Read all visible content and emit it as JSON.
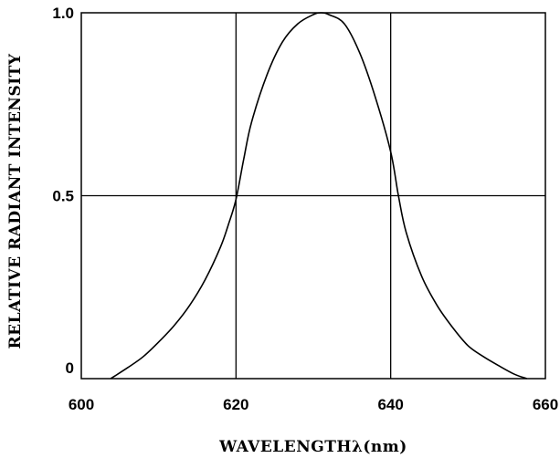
{
  "chart_data": {
    "type": "line",
    "title": "",
    "xlabel": "WAVELENGTHλ(nm)",
    "ylabel": "RELATIVE RADIANT INTENSITY",
    "xlim": [
      600,
      660
    ],
    "ylim": [
      0,
      1.0
    ],
    "x_ticks": [
      {
        "value": 600,
        "label": "600"
      },
      {
        "value": 620,
        "label": "620"
      },
      {
        "value": 640,
        "label": "640"
      },
      {
        "value": 660,
        "label": "660"
      }
    ],
    "y_ticks": [
      {
        "value": 0,
        "label": "0"
      },
      {
        "value": 0.5,
        "label": "0.5"
      },
      {
        "value": 1.0,
        "label": "1.0"
      }
    ],
    "grid_x": [
      620,
      640
    ],
    "grid_y": [
      0.5
    ],
    "series": [
      {
        "color": "#000000",
        "points": [
          [
            603.8,
            0.0
          ],
          [
            606,
            0.03
          ],
          [
            608,
            0.06
          ],
          [
            610,
            0.1
          ],
          [
            612,
            0.145
          ],
          [
            614,
            0.2
          ],
          [
            616,
            0.27
          ],
          [
            618,
            0.36
          ],
          [
            619,
            0.42
          ],
          [
            620,
            0.49
          ],
          [
            621,
            0.6
          ],
          [
            622,
            0.7
          ],
          [
            624,
            0.83
          ],
          [
            626,
            0.92
          ],
          [
            628,
            0.97
          ],
          [
            630,
            0.995
          ],
          [
            631,
            1.0
          ],
          [
            632,
            0.995
          ],
          [
            634,
            0.97
          ],
          [
            636,
            0.89
          ],
          [
            638,
            0.77
          ],
          [
            640,
            0.62
          ],
          [
            641,
            0.5
          ],
          [
            642,
            0.4
          ],
          [
            644,
            0.28
          ],
          [
            646,
            0.2
          ],
          [
            648,
            0.14
          ],
          [
            650,
            0.09
          ],
          [
            652,
            0.06
          ],
          [
            654,
            0.035
          ],
          [
            656,
            0.012
          ],
          [
            657.6,
            0.0
          ]
        ]
      }
    ]
  }
}
